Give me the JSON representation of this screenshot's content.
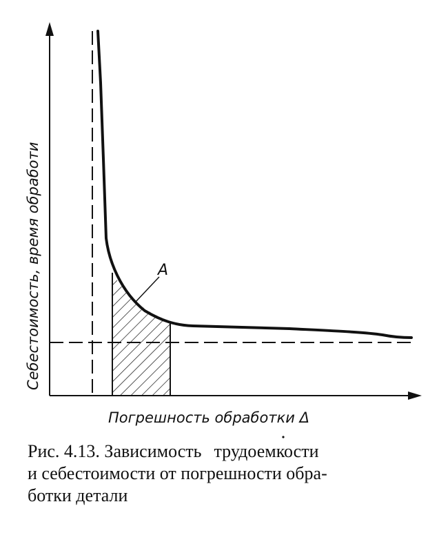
{
  "diagram": {
    "y_axis_label": "Себестоимость, время обработи",
    "x_axis_label": "Погрешность обработки Δ",
    "point_label": "A"
  },
  "caption": {
    "line1_a": "Рис. 4.13. Зависимость",
    "line1_b": "трудоемкости",
    "line2": "и себестоимости от погрешности обра-",
    "line3": "ботки детали"
  }
}
